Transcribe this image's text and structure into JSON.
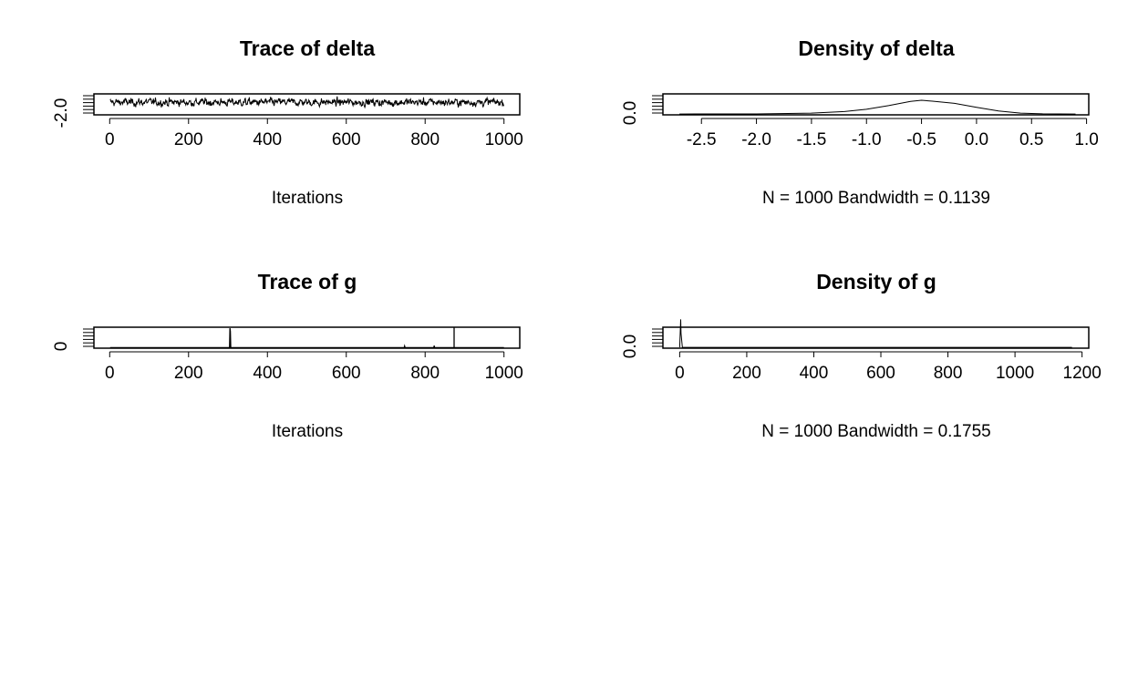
{
  "chart_data": [
    {
      "type": "line",
      "title": "Trace of delta",
      "xlabel": "Iterations",
      "ylabel": "",
      "xlim": [
        -40,
        1040
      ],
      "ylim": [
        -2.75,
        1.0
      ],
      "x_ticks": [
        "0",
        "200",
        "400",
        "600",
        "800",
        "1000"
      ],
      "y_ticks": [
        "-2.0"
      ],
      "series": [
        {
          "x_range": [
            1,
            1000
          ],
          "level": -0.5,
          "spread": 0.3,
          "min": -2.4,
          "max": 0.9
        }
      ],
      "grid": false
    },
    {
      "type": "area",
      "title": "Density of delta",
      "xlabel": "N = 1000   Bandwidth = 0.1139",
      "ylabel": "",
      "xlim": [
        -2.85,
        1.02
      ],
      "ylim": [
        -0.03,
        0.72
      ],
      "x_ticks": [
        "-2.5",
        "-2.0",
        "-1.5",
        "-1.0",
        "-0.5",
        "0.0",
        "0.5",
        "1.0"
      ],
      "y_ticks": [
        "0.0"
      ],
      "series": [
        {
          "x": [
            -2.7,
            -2.0,
            -1.5,
            -1.2,
            -1.0,
            -0.8,
            -0.6,
            -0.5,
            -0.4,
            -0.2,
            0.0,
            0.2,
            0.4,
            0.6,
            0.9
          ],
          "y": [
            0.0,
            0.004,
            0.03,
            0.09,
            0.17,
            0.3,
            0.45,
            0.49,
            0.46,
            0.38,
            0.24,
            0.11,
            0.03,
            0.006,
            0.0
          ]
        }
      ],
      "grid": false
    },
    {
      "type": "line",
      "title": "Trace of g",
      "xlabel": "Iterations",
      "ylabel": "",
      "xlim": [
        -40,
        1040
      ],
      "ylim": [
        -5,
        200
      ],
      "x_ticks": [
        "0",
        "200",
        "400",
        "600",
        "800",
        "1000"
      ],
      "y_ticks": [
        "0"
      ],
      "series": [
        {
          "x_range": [
            1,
            1000
          ],
          "base": 0.5,
          "spikes": [
            {
              "x": 305,
              "y": 190
            },
            {
              "x": 306,
              "y": 160
            },
            {
              "x": 748,
              "y": 15
            },
            {
              "x": 823,
              "y": 20
            }
          ]
        }
      ],
      "grid": false
    },
    {
      "type": "area",
      "title": "Density of g",
      "xlabel": "N = 1000   Bandwidth = 0.1755",
      "ylabel": "",
      "xlim": [
        -50,
        1220
      ],
      "ylim": [
        -0.03,
        0.72
      ],
      "x_ticks": [
        "0",
        "200",
        "400",
        "600",
        "800",
        "1000",
        "1200"
      ],
      "y_ticks": [
        "0.0"
      ],
      "series": [
        {
          "x": [
            0,
            3,
            4,
            8,
            1170
          ],
          "y": [
            0.0,
            1.0,
            0.5,
            0.0,
            0.0
          ]
        }
      ],
      "grid": false
    }
  ]
}
